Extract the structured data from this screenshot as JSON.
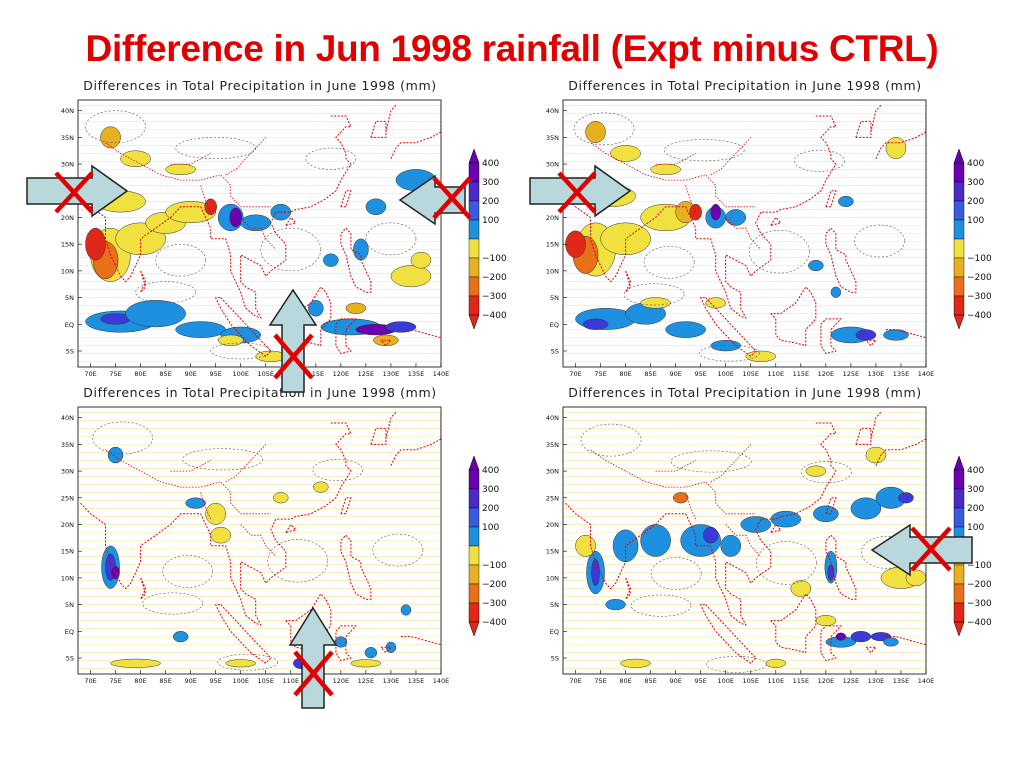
{
  "slide": {
    "title": "Difference in Jun 1998 rainfall (Expt minus CTRL)"
  },
  "panels": [
    {
      "title": "Differences in Total Precipitation in June 1998 (mm)"
    },
    {
      "title": "Differences in Total Precipitation in June 1998 (mm)"
    },
    {
      "title": "Differences in Total Precipitation in June 1998 (mm)"
    },
    {
      "title": "Differences in Total Precipitation in June 1998 (mm)"
    }
  ],
  "x_ticks": [
    "70E",
    "75E",
    "80E",
    "85E",
    "90E",
    "95E",
    "100E",
    "105E",
    "110E",
    "115E",
    "120E",
    "125E",
    "130E",
    "135E",
    "140E"
  ],
  "y_ticks": [
    "40N",
    "35N",
    "30N",
    "25N",
    "20N",
    "15N",
    "10N",
    "5N",
    "EQ",
    "5S"
  ],
  "colorbar": {
    "levels": [
      "400",
      "300",
      "200",
      "100",
      "-100",
      "-200",
      "-300",
      "-400"
    ],
    "colors": [
      "#6a00b0",
      "#3a3ad8",
      "#1e90e0",
      "#ffffff",
      "#f0e040",
      "#e8b020",
      "#e87018",
      "#e02818"
    ]
  },
  "colors": {
    "title": "#e00000",
    "arrow_fill": "#b8d8dc",
    "cross": "#e00000",
    "coastline": "#e00000",
    "wet": "#1e90e0",
    "dry": "#f0d040"
  }
}
